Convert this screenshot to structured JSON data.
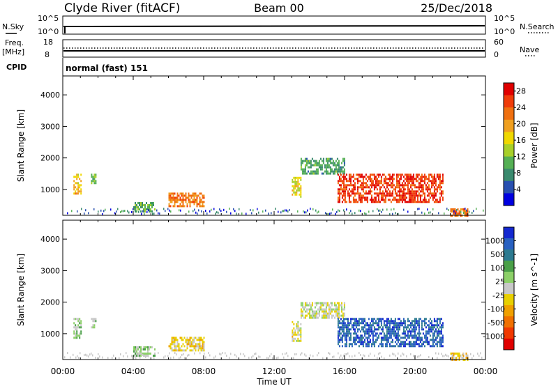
{
  "header": {
    "site": "Clyde River (fitACF)",
    "beam": "Beam 00",
    "date": "25/Dec/2018"
  },
  "status_panels": {
    "nsky_label": "N.Sky",
    "nsearch_label": "N.Search",
    "nsky_ticks": [
      "10^5",
      "10^0"
    ],
    "nsearch_ticks": [
      "10^5",
      "10^0"
    ],
    "freq_label": "Freq.",
    "freq_unit": "[MHz]",
    "freq_ticks": [
      "18",
      "8"
    ],
    "nave_label": "Nave",
    "nave_ticks": [
      "60",
      "0"
    ],
    "cpid_label": "CPID",
    "cpid_text": "normal (fast) 151"
  },
  "colors": {
    "power": [
      "#0000e0",
      "#2850b0",
      "#3a8a6e",
      "#55b055",
      "#a8d02a",
      "#f0d800",
      "#f0a020",
      "#f07010",
      "#f03c0a",
      "#e00000"
    ],
    "velocity": [
      "#1428d0",
      "#2860c0",
      "#2c7a90",
      "#4aa048",
      "#8cd068",
      "#c8c8c8",
      "#e8d000",
      "#f0a000",
      "#f07000",
      "#f03800",
      "#e00000"
    ]
  },
  "chart_data": [
    {
      "type": "heatmap",
      "xlabel": "Time UT",
      "ylabel": "Slant Range [km]",
      "x_ticks": [
        "00:00",
        "04:00",
        "08:00",
        "12:00",
        "16:00",
        "20:00",
        "00:00"
      ],
      "y_ticks": [
        1000,
        2000,
        3000,
        4000
      ],
      "ylim": [
        180,
        4600
      ],
      "colorbar_label": "Power [dB]",
      "colorbar_ticks": [
        4,
        8,
        12,
        16,
        20,
        24,
        28
      ],
      "clim": [
        0,
        30
      ],
      "regions": [
        {
          "t0": 0.6,
          "t1": 1.0,
          "r0": 900,
          "r1": 1500,
          "value": 18
        },
        {
          "t0": 1.6,
          "t1": 1.9,
          "r0": 1200,
          "r1": 1500,
          "value": 12
        },
        {
          "t0": 4.0,
          "t1": 5.2,
          "r0": 300,
          "r1": 600,
          "value": 10
        },
        {
          "t0": 6.0,
          "t1": 8.0,
          "r0": 500,
          "r1": 900,
          "value": 22
        },
        {
          "t0": 13.0,
          "t1": 13.5,
          "r0": 800,
          "r1": 1400,
          "value": 16
        },
        {
          "t0": 13.5,
          "t1": 16.0,
          "r0": 1500,
          "r1": 2000,
          "value": 9
        },
        {
          "t0": 15.6,
          "t1": 21.6,
          "r0": 600,
          "r1": 1500,
          "value": 26
        },
        {
          "t0": 22.0,
          "t1": 23.0,
          "r0": 200,
          "r1": 400,
          "value": 22
        }
      ]
    },
    {
      "type": "heatmap",
      "xlabel": "Time UT",
      "ylabel": "Slant Range [km]",
      "x_ticks": [
        "00:00",
        "04:00",
        "08:00",
        "12:00",
        "16:00",
        "20:00",
        "00:00"
      ],
      "y_ticks": [
        1000,
        2000,
        3000,
        4000
      ],
      "ylim": [
        180,
        4600
      ],
      "colorbar_label": "Velocity [m s^-1]",
      "colorbar_ticks": [
        1000,
        500,
        100,
        25,
        -25,
        -100,
        -500,
        -1000
      ],
      "clim": [
        -1000,
        1000
      ],
      "regions": [
        {
          "t0": 0.6,
          "t1": 1.0,
          "r0": 900,
          "r1": 1500,
          "value": 200
        },
        {
          "t0": 1.6,
          "t1": 1.9,
          "r0": 1200,
          "r1": 1500,
          "value": 80
        },
        {
          "t0": 4.0,
          "t1": 5.2,
          "r0": 300,
          "r1": 600,
          "value": 150
        },
        {
          "t0": 6.0,
          "t1": 8.0,
          "r0": 500,
          "r1": 900,
          "value": -150
        },
        {
          "t0": 13.0,
          "t1": 13.5,
          "r0": 800,
          "r1": 1400,
          "value": -80
        },
        {
          "t0": 13.5,
          "t1": 16.0,
          "r0": 1500,
          "r1": 2000,
          "value": 0
        },
        {
          "t0": 15.6,
          "t1": 21.6,
          "r0": 600,
          "r1": 1500,
          "value": 700
        },
        {
          "t0": 22.0,
          "t1": 23.0,
          "r0": 200,
          "r1": 400,
          "value": -200
        }
      ]
    }
  ]
}
